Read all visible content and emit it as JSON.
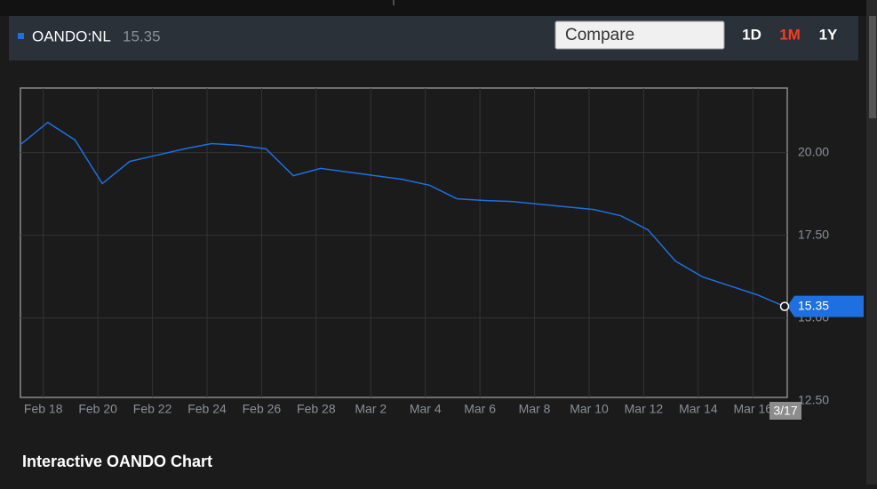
{
  "header": {
    "ticker": "OANDO:NL",
    "price": 15.35,
    "compare": "Compare",
    "ranges": [
      "1D",
      "1M",
      "1Y"
    ],
    "active_range": 1
  },
  "chart_data": {
    "type": "line",
    "title": "Interactive OANDO Chart",
    "categories": [
      null,
      "Feb 18",
      null,
      "Feb 20",
      null,
      "Feb 22",
      null,
      "Feb 24",
      null,
      "Feb 26",
      null,
      "Feb 28",
      null,
      "Mar 2",
      null,
      "Mar 4",
      null,
      "Mar 6",
      null,
      "Mar 8",
      null,
      "Mar 10",
      null,
      "Mar 12",
      null,
      "Mar 14",
      null,
      "Mar 16",
      "3/17"
    ],
    "series": [
      {
        "name": "OANDO:NL",
        "color": "#1e6fe0",
        "values": [
          20.24,
          20.91,
          20.38,
          19.06,
          19.73,
          19.92,
          20.11,
          20.27,
          20.22,
          20.11,
          19.3,
          19.52,
          19.41,
          19.3,
          19.19,
          19.01,
          18.6,
          18.55,
          18.52,
          18.44,
          18.36,
          18.28,
          18.09,
          17.66,
          16.72,
          16.24,
          15.97,
          15.7,
          15.35
        ]
      }
    ],
    "ylim": [
      12.6,
      21.95
    ],
    "yticks": [
      {
        "value": 12.5,
        "label": "12.50"
      },
      {
        "value": 15,
        "label": "15.00"
      },
      {
        "value": 17.5,
        "label": "17.50"
      },
      {
        "value": 20,
        "label": "20.00"
      }
    ],
    "grid": true
  }
}
